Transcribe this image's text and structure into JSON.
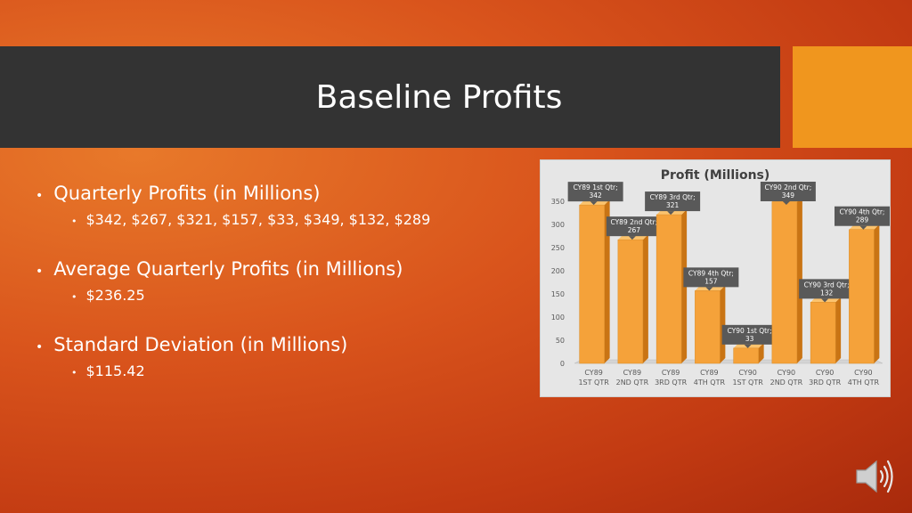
{
  "slide": {
    "title": "Baseline Profits",
    "bullets": [
      {
        "label": "Quarterly Profits (in Millions)",
        "sub": "$342, $267, $321, $157, $33, $349, $132, $289"
      },
      {
        "label": "Average Quarterly Profits (in Millions)",
        "sub": "$236.25"
      },
      {
        "label": "Standard Deviation (in Millions)",
        "sub": "$115.42"
      }
    ]
  },
  "colors": {
    "bar": "#f5a23a",
    "bar_side": "#c97414",
    "bar_top": "#fbc36e",
    "label_bg": "#595959",
    "accent": "#f0961e"
  },
  "icons": {
    "audio": "speaker-icon"
  },
  "chart_data": {
    "type": "bar",
    "title": "Profit (Millions)",
    "categories": [
      "CY89 1ST QTR",
      "CY89 2ND QTR",
      "CY89 3RD QTR",
      "CY89 4TH QTR",
      "CY90 1ST QTR",
      "CY90 2ND QTR",
      "CY90 3RD QTR",
      "CY90 4TH QTR"
    ],
    "category_lines": [
      [
        "CY89",
        "1ST QTR"
      ],
      [
        "CY89",
        "2ND QTR"
      ],
      [
        "CY89",
        "3RD QTR"
      ],
      [
        "CY89",
        "4TH QTR"
      ],
      [
        "CY90",
        "1ST QTR"
      ],
      [
        "CY90",
        "2ND QTR"
      ],
      [
        "CY90",
        "3RD QTR"
      ],
      [
        "CY90",
        "4TH QTR"
      ]
    ],
    "values": [
      342,
      267,
      321,
      157,
      33,
      349,
      132,
      289
    ],
    "data_labels": [
      [
        "CY89 1st Qtr;",
        "342"
      ],
      [
        "CY89 2nd Qtr;",
        "267"
      ],
      [
        "CY89 3rd Qtr;",
        "321"
      ],
      [
        "CY89 4th Qtr;",
        "157"
      ],
      [
        "CY90 1st Qtr;",
        "33"
      ],
      [
        "CY90 2nd Qtr;",
        "349"
      ],
      [
        "CY90 3rd Qtr;",
        "132"
      ],
      [
        "CY90 4th Qtr;",
        "289"
      ]
    ],
    "ylim": [
      0,
      350
    ],
    "yticks": [
      "0",
      "50",
      "100",
      "150",
      "200",
      "250",
      "300",
      "350"
    ],
    "xlabel": "",
    "ylabel": "",
    "grid": false,
    "legend": "none"
  }
}
